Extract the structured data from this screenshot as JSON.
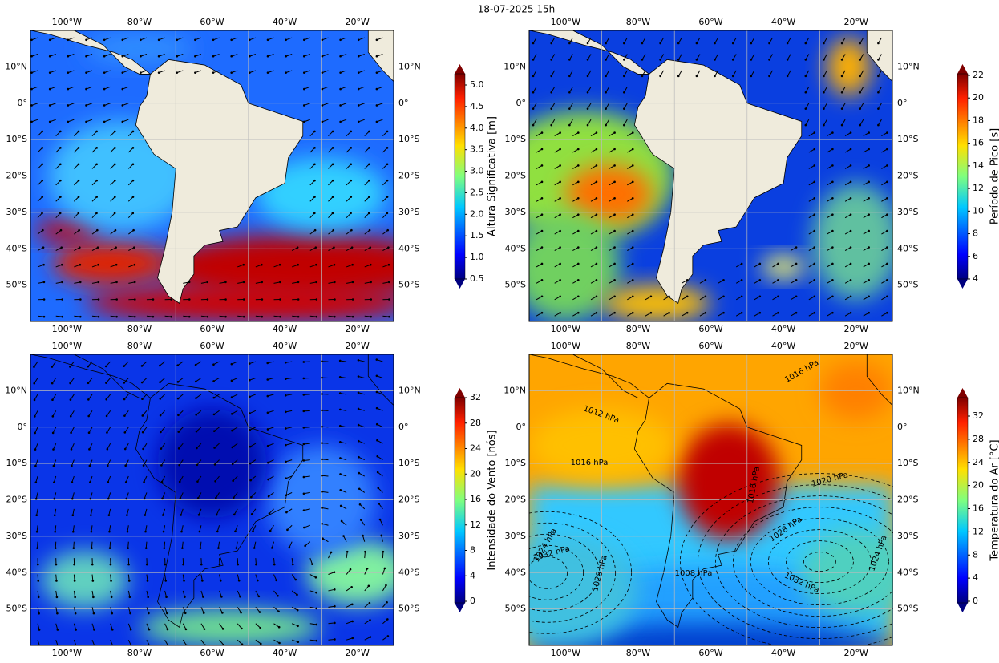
{
  "title": "18-07-2025 15h",
  "lon_labels": [
    "100°W",
    "80°W",
    "60°W",
    "40°W",
    "20°W"
  ],
  "lat_labels": [
    "10°N",
    "0°",
    "10°S",
    "20°S",
    "30°S",
    "40°S",
    "50°S"
  ],
  "panels": [
    {
      "colorbar_label": "Altura Significativa [m]",
      "colorbar_ticks": [
        "0.5",
        "1.0",
        "1.5",
        "2.0",
        "2.5",
        "3.0",
        "3.5",
        "4.0",
        "4.5",
        "5.0"
      ]
    },
    {
      "colorbar_label": "Período de Pico [s]",
      "colorbar_ticks": [
        "4",
        "6",
        "8",
        "10",
        "12",
        "14",
        "16",
        "18",
        "20",
        "22"
      ]
    },
    {
      "colorbar_label": "Intensidade do Vento [nós]",
      "colorbar_ticks": [
        "0",
        "4",
        "8",
        "12",
        "16",
        "20",
        "24",
        "28",
        "32"
      ]
    },
    {
      "colorbar_label": "Temperatura do Ar [°C]",
      "colorbar_ticks": [
        "0",
        "4",
        "8",
        "12",
        "16",
        "20",
        "24",
        "28",
        "32"
      ],
      "isobar_labels": [
        "1016 hPa",
        "1012 hPa",
        "1016 hPa",
        "1020 hPa",
        "1016 hPa",
        "1028 hPa",
        "1024 hPa",
        "1032 hPa",
        "1028 hPa",
        "1008 hPa",
        "1032 hPa",
        "1024 hPa"
      ]
    }
  ]
}
